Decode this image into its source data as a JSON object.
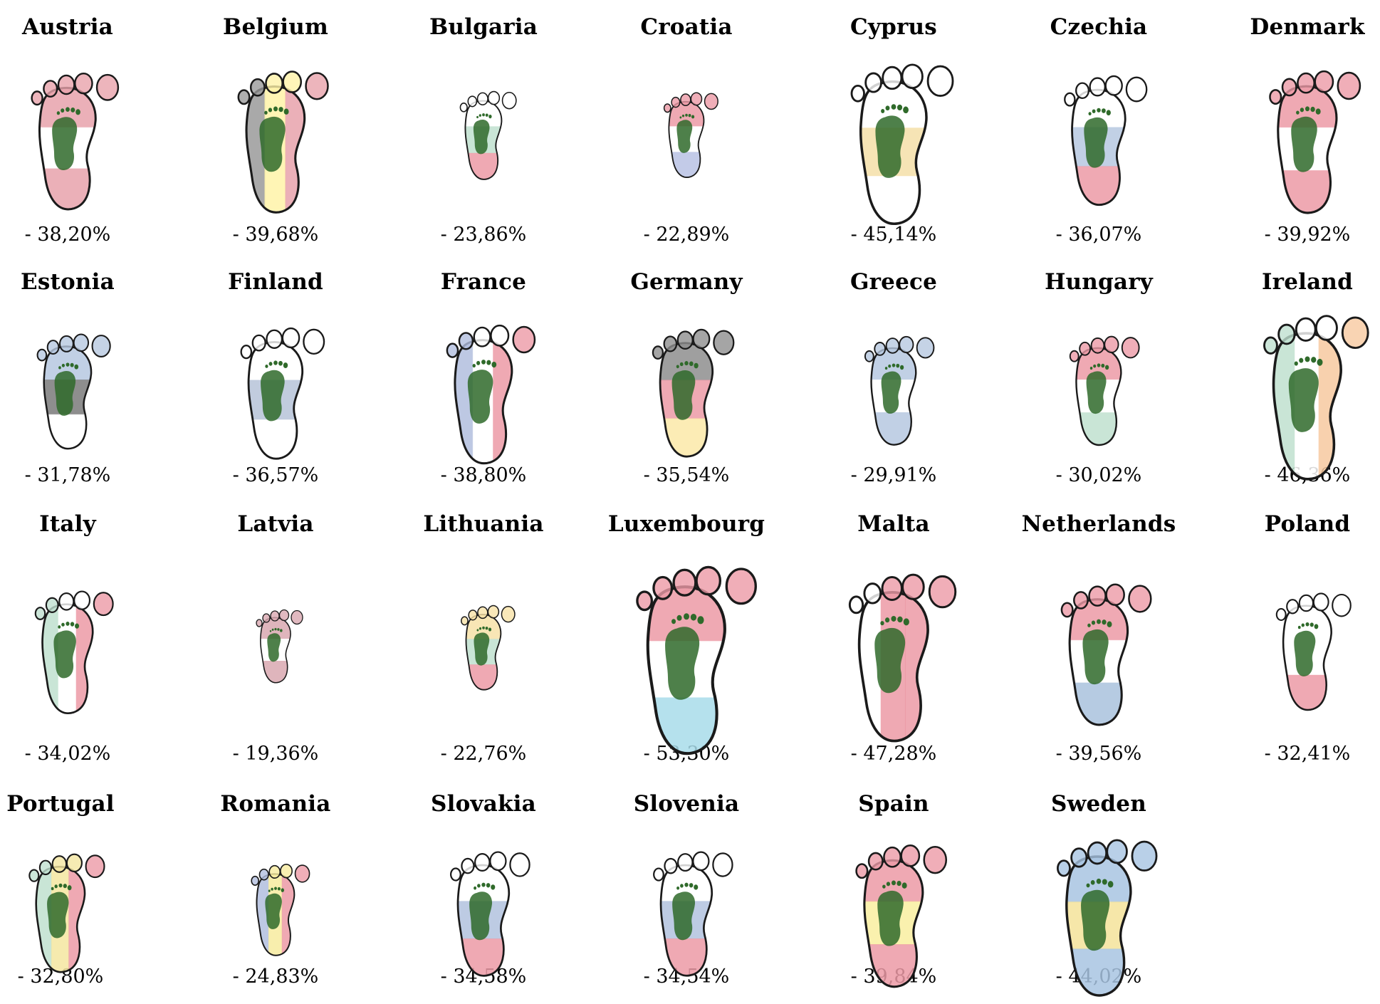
{
  "chart_data": {
    "type": "pictogram",
    "items": [
      {
        "country": "Austria",
        "label": "- 38,20%",
        "value": 38.2,
        "colors": [
          "#e8a2ab",
          "#ffffff",
          "#e8a2ab"
        ],
        "orient": "h"
      },
      {
        "country": "Belgium",
        "label": "- 39,68%",
        "value": 39.68,
        "colors": [
          "#9a9a9a",
          "#fff3a8",
          "#e8a2ab"
        ],
        "orient": "v"
      },
      {
        "country": "Bulgaria",
        "label": "- 23,86%",
        "value": 23.86,
        "colors": [
          "#ffffff",
          "#bfe0cf",
          "#ec9aa6"
        ],
        "orient": "h"
      },
      {
        "country": "Croatia",
        "label": "- 22,89%",
        "value": 22.89,
        "colors": [
          "#ec9aa6",
          "#ffffff",
          "#b9c2e4"
        ],
        "orient": "h"
      },
      {
        "country": "Cyprus",
        "label": "- 45,14%",
        "value": 45.14,
        "colors": [
          "#ffffff",
          "#f5dfa8",
          "#ffffff"
        ],
        "orient": "h"
      },
      {
        "country": "Czechia",
        "label": "- 36,07%",
        "value": 36.07,
        "colors": [
          "#ffffff",
          "#b6c8e0",
          "#ec9aa6"
        ],
        "orient": "h"
      },
      {
        "country": "Denmark",
        "label": "- 39,92%",
        "value": 39.92,
        "colors": [
          "#ec9aa6",
          "#ffffff",
          "#ec9aa6"
        ],
        "orient": "h"
      },
      {
        "country": "Estonia",
        "label": "- 31,78%",
        "value": 31.78,
        "colors": [
          "#b6c8e0",
          "#7a7a7a",
          "#ffffff"
        ],
        "orient": "h"
      },
      {
        "country": "Finland",
        "label": "- 36,57%",
        "value": 36.57,
        "colors": [
          "#ffffff",
          "#b6c3d8",
          "#ffffff"
        ],
        "orient": "h"
      },
      {
        "country": "France",
        "label": "- 38,80%",
        "value": 38.8,
        "colors": [
          "#b2bede",
          "#ffffff",
          "#ec9aa6"
        ],
        "orient": "v"
      },
      {
        "country": "Germany",
        "label": "- 35,54%",
        "value": 35.54,
        "colors": [
          "#8e8e8e",
          "#ec9aa6",
          "#fbe9a8"
        ],
        "orient": "h"
      },
      {
        "country": "Greece",
        "label": "- 29,91%",
        "value": 29.91,
        "colors": [
          "#b6c8e0",
          "#ffffff",
          "#b6c8e0"
        ],
        "orient": "h"
      },
      {
        "country": "Hungary",
        "label": "- 30,02%",
        "value": 30.02,
        "colors": [
          "#ec9aa6",
          "#ffffff",
          "#bfe0cf"
        ],
        "orient": "h"
      },
      {
        "country": "Ireland",
        "label": "- 46,36%",
        "value": 46.36,
        "colors": [
          "#bfe0cf",
          "#ffffff",
          "#f7c9a0"
        ],
        "orient": "v"
      },
      {
        "country": "Italy",
        "label": "- 34,02%",
        "value": 34.02,
        "colors": [
          "#bfe0cf",
          "#ffffff",
          "#ec9aa6"
        ],
        "orient": "v"
      },
      {
        "country": "Latvia",
        "label": "- 19,36%",
        "value": 19.36,
        "colors": [
          "#d9a8b0",
          "#ffffff",
          "#d9a8b0"
        ],
        "orient": "h"
      },
      {
        "country": "Lithuania",
        "label": "- 22,76%",
        "value": 22.76,
        "colors": [
          "#f7e2a8",
          "#bfe0cf",
          "#ec9aa6"
        ],
        "orient": "h"
      },
      {
        "country": "Luxembourg",
        "label": "- 53,30%",
        "value": 53.3,
        "colors": [
          "#ec9aa6",
          "#ffffff",
          "#a8dcea"
        ],
        "orient": "h"
      },
      {
        "country": "Malta",
        "label": "- 47,28%",
        "value": 47.28,
        "colors": [
          "#ffffff",
          "#ec9aa6",
          "#ec9aa6"
        ],
        "orient": "v"
      },
      {
        "country": "Netherlands",
        "label": "- 39,56%",
        "value": 39.56,
        "colors": [
          "#ec9aa6",
          "#ffffff",
          "#a9c2dd"
        ],
        "orient": "h"
      },
      {
        "country": "Poland",
        "label": "- 32,41%",
        "value": 32.41,
        "colors": [
          "#ffffff",
          "#ffffff",
          "#ec9aa6"
        ],
        "orient": "h"
      },
      {
        "country": "Portugal",
        "label": "- 32,80%",
        "value": 32.8,
        "colors": [
          "#bfe0cf",
          "#f4e6a0",
          "#ec9aa6"
        ],
        "orient": "v"
      },
      {
        "country": "Romania",
        "label": "- 24,83%",
        "value": 24.83,
        "colors": [
          "#b2bede",
          "#f7eb9f",
          "#ec9aa6"
        ],
        "orient": "v"
      },
      {
        "country": "Slovakia",
        "label": "- 34,58%",
        "value": 34.58,
        "colors": [
          "#ffffff",
          "#b2c2de",
          "#ec9aa6"
        ],
        "orient": "h"
      },
      {
        "country": "Slovenia",
        "label": "- 34,54%",
        "value": 34.54,
        "colors": [
          "#ffffff",
          "#b2c2de",
          "#ec9aa6"
        ],
        "orient": "h"
      },
      {
        "country": "Spain",
        "label": "- 39,84%",
        "value": 39.84,
        "colors": [
          "#ec9aa6",
          "#f9eea0",
          "#ec9aa6"
        ],
        "orient": "h"
      },
      {
        "country": "Sweden",
        "label": "- 44,02%",
        "value": 44.02,
        "colors": [
          "#a8c4e2",
          "#f4e39a",
          "#a8c4e2"
        ],
        "orient": "h"
      }
    ]
  },
  "style": {
    "outline": "#1a1a1a",
    "green": "#2f6a2a",
    "dark_green": "#1a4a18"
  }
}
